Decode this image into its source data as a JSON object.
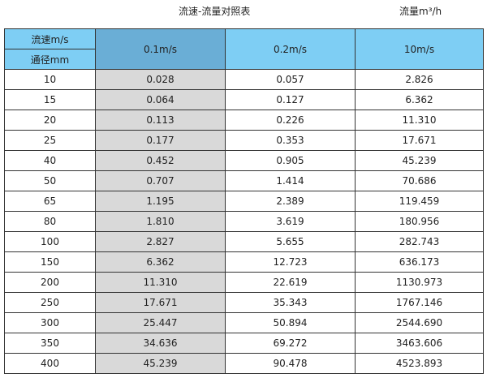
{
  "title": "流速-流量对照表",
  "unit": "流量m³/h",
  "header": {
    "velocity_label": "流速m/s",
    "diameter_label": "通径mm",
    "columns": [
      "0.1m/s",
      "0.2m/s",
      "10m/s"
    ]
  },
  "colors": {
    "header": "#7ecef4",
    "selected_header": "#6aaed6",
    "highlight_column": "#d9d9d9"
  },
  "rows": [
    [
      "10",
      "0.028",
      "0.057",
      "2.826"
    ],
    [
      "15",
      "0.064",
      "0.127",
      "6.362"
    ],
    [
      "20",
      "0.113",
      "0.226",
      "11.310"
    ],
    [
      "25",
      "0.177",
      "0.353",
      "17.671"
    ],
    [
      "40",
      "0.452",
      "0.905",
      "45.239"
    ],
    [
      "50",
      "0.707",
      "1.414",
      "70.686"
    ],
    [
      "65",
      "1.195",
      "2.389",
      "119.459"
    ],
    [
      "80",
      "1.810",
      "3.619",
      "180.956"
    ],
    [
      "100",
      "2.827",
      "5.655",
      "282.743"
    ],
    [
      "150",
      "6.362",
      "12.723",
      "636.173"
    ],
    [
      "200",
      "11.310",
      "22.619",
      "1130.973"
    ],
    [
      "250",
      "17.671",
      "35.343",
      "1767.146"
    ],
    [
      "300",
      "25.447",
      "50.894",
      "2544.690"
    ],
    [
      "350",
      "34.636",
      "69.272",
      "3463.606"
    ],
    [
      "400",
      "45.239",
      "90.478",
      "4523.893"
    ]
  ]
}
